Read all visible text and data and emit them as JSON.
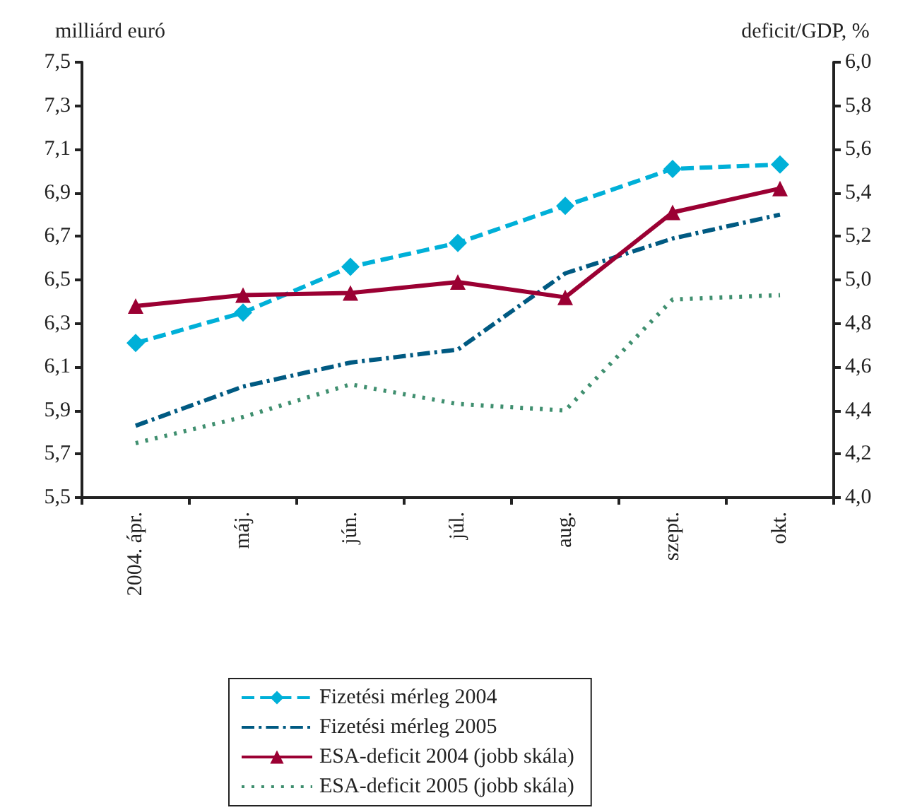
{
  "chart_data": {
    "type": "line",
    "ylabel": "milliárd euró",
    "y2label": "deficit/GDP, %",
    "categories": [
      "2004. ápr.",
      "máj.",
      "jún.",
      "júl.",
      "aug.",
      "szept.",
      "okt."
    ],
    "series": [
      {
        "name": "Fizetési mérleg 2004",
        "color": "#00b0d8",
        "marker": "diamond",
        "line_style": "dashed",
        "values": [
          6.21,
          6.35,
          6.56,
          6.67,
          6.84,
          7.01,
          7.03
        ]
      },
      {
        "name": "Fizetési mérleg 2005",
        "color": "#005a82",
        "marker": "none",
        "line_style": "dashdot",
        "values": [
          5.83,
          6.01,
          6.12,
          6.18,
          6.53,
          6.69,
          6.8
        ]
      },
      {
        "name": "ESA-deficit 2004 (jobb skála)",
        "color": "#9b0033",
        "marker": "triangle",
        "line_style": "solid",
        "axis": "y2",
        "values": [
          4.88,
          4.93,
          4.94,
          4.99,
          4.92,
          5.31,
          5.42
        ]
      },
      {
        "name": "ESA-deficit 2005 (jobb skála)",
        "color": "#3f8f6f",
        "marker": "none",
        "line_style": "dotted",
        "axis": "y2",
        "values": [
          4.25,
          4.37,
          4.52,
          4.43,
          4.4,
          4.91,
          4.93
        ]
      }
    ],
    "ylim": [
      5.5,
      7.5
    ],
    "yticks": [
      {
        "value": 5.5,
        "label": "5,5"
      },
      {
        "value": 5.7,
        "label": "5,7"
      },
      {
        "value": 5.9,
        "label": "5,9"
      },
      {
        "value": 6.1,
        "label": "6,1"
      },
      {
        "value": 6.3,
        "label": "6,3"
      },
      {
        "value": 6.5,
        "label": "6,5"
      },
      {
        "value": 6.7,
        "label": "6,7"
      },
      {
        "value": 6.9,
        "label": "6,9"
      },
      {
        "value": 7.1,
        "label": "7,1"
      },
      {
        "value": 7.3,
        "label": "7,3"
      },
      {
        "value": 7.5,
        "label": "7,5"
      }
    ],
    "y2lim": [
      4.0,
      6.0
    ],
    "y2ticks": [
      {
        "value": 4.0,
        "label": "4,0"
      },
      {
        "value": 4.2,
        "label": "4,2"
      },
      {
        "value": 4.4,
        "label": "4,4"
      },
      {
        "value": 4.6,
        "label": "4,6"
      },
      {
        "value": 4.8,
        "label": "4,8"
      },
      {
        "value": 5.0,
        "label": "5,0"
      },
      {
        "value": 5.2,
        "label": "5,2"
      },
      {
        "value": 5.4,
        "label": "5,4"
      },
      {
        "value": 5.6,
        "label": "5,6"
      },
      {
        "value": 5.8,
        "label": "5,8"
      },
      {
        "value": 6.0,
        "label": "6,0"
      }
    ],
    "grid": false,
    "legend": "bottom"
  }
}
